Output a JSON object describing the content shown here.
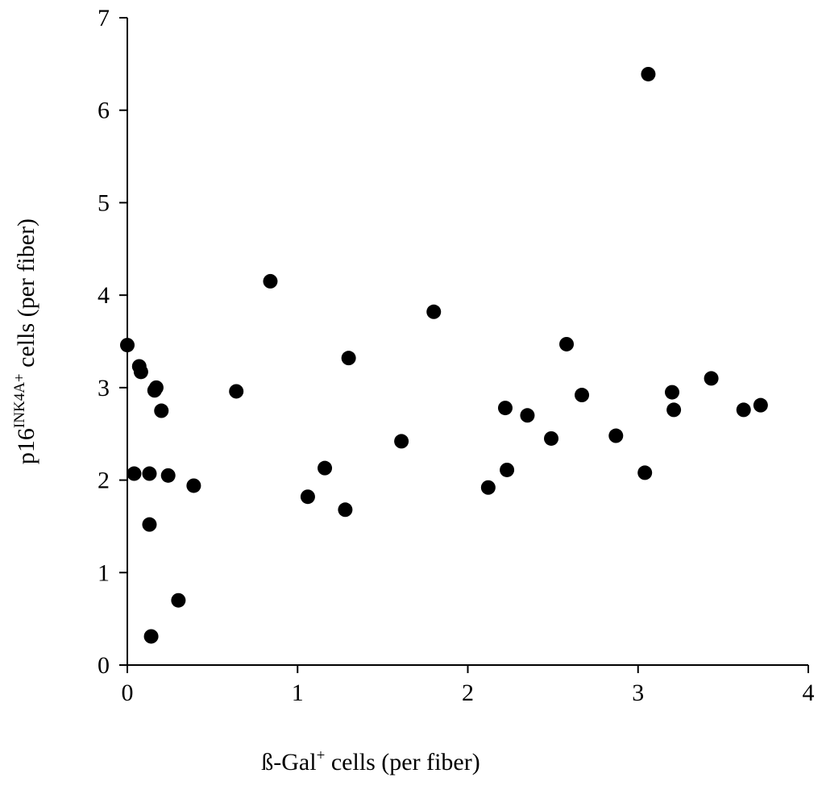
{
  "chart_data": {
    "type": "scatter",
    "title": "",
    "xlabel": {
      "main": "ß-Gal",
      "sup": "+",
      "rest": " cells (per fiber)"
    },
    "ylabel": {
      "main": "p16",
      "sup": "INK4A+",
      "rest": " cells (per fiber)"
    },
    "xlim": [
      0,
      4
    ],
    "ylim": [
      0,
      7
    ],
    "xticks": [
      "0",
      "1",
      "2",
      "3",
      "4"
    ],
    "yticks": [
      "0",
      "1",
      "2",
      "3",
      "4",
      "5",
      "6",
      "7"
    ],
    "grid": false,
    "legend": "none",
    "marker_color": "#000000",
    "points": [
      {
        "x": 0.0,
        "y": 3.46
      },
      {
        "x": 0.04,
        "y": 2.07
      },
      {
        "x": 0.07,
        "y": 3.23
      },
      {
        "x": 0.08,
        "y": 3.17
      },
      {
        "x": 0.13,
        "y": 2.07
      },
      {
        "x": 0.13,
        "y": 1.52
      },
      {
        "x": 0.14,
        "y": 0.31
      },
      {
        "x": 0.16,
        "y": 2.97
      },
      {
        "x": 0.17,
        "y": 3.0
      },
      {
        "x": 0.2,
        "y": 2.75
      },
      {
        "x": 0.24,
        "y": 2.05
      },
      {
        "x": 0.3,
        "y": 0.7
      },
      {
        "x": 0.39,
        "y": 1.94
      },
      {
        "x": 0.64,
        "y": 2.96
      },
      {
        "x": 0.84,
        "y": 4.15
      },
      {
        "x": 1.06,
        "y": 1.82
      },
      {
        "x": 1.16,
        "y": 2.13
      },
      {
        "x": 1.28,
        "y": 1.68
      },
      {
        "x": 1.3,
        "y": 3.32
      },
      {
        "x": 1.61,
        "y": 2.42
      },
      {
        "x": 1.8,
        "y": 3.82
      },
      {
        "x": 2.12,
        "y": 1.92
      },
      {
        "x": 2.22,
        "y": 2.78
      },
      {
        "x": 2.23,
        "y": 2.11
      },
      {
        "x": 2.35,
        "y": 2.7
      },
      {
        "x": 2.49,
        "y": 2.45
      },
      {
        "x": 2.58,
        "y": 3.47
      },
      {
        "x": 2.67,
        "y": 2.92
      },
      {
        "x": 2.87,
        "y": 2.48
      },
      {
        "x": 3.04,
        "y": 2.08
      },
      {
        "x": 3.06,
        "y": 6.39
      },
      {
        "x": 3.2,
        "y": 2.95
      },
      {
        "x": 3.21,
        "y": 2.76
      },
      {
        "x": 3.43,
        "y": 3.1
      },
      {
        "x": 3.62,
        "y": 2.76
      },
      {
        "x": 3.72,
        "y": 2.81
      }
    ]
  }
}
